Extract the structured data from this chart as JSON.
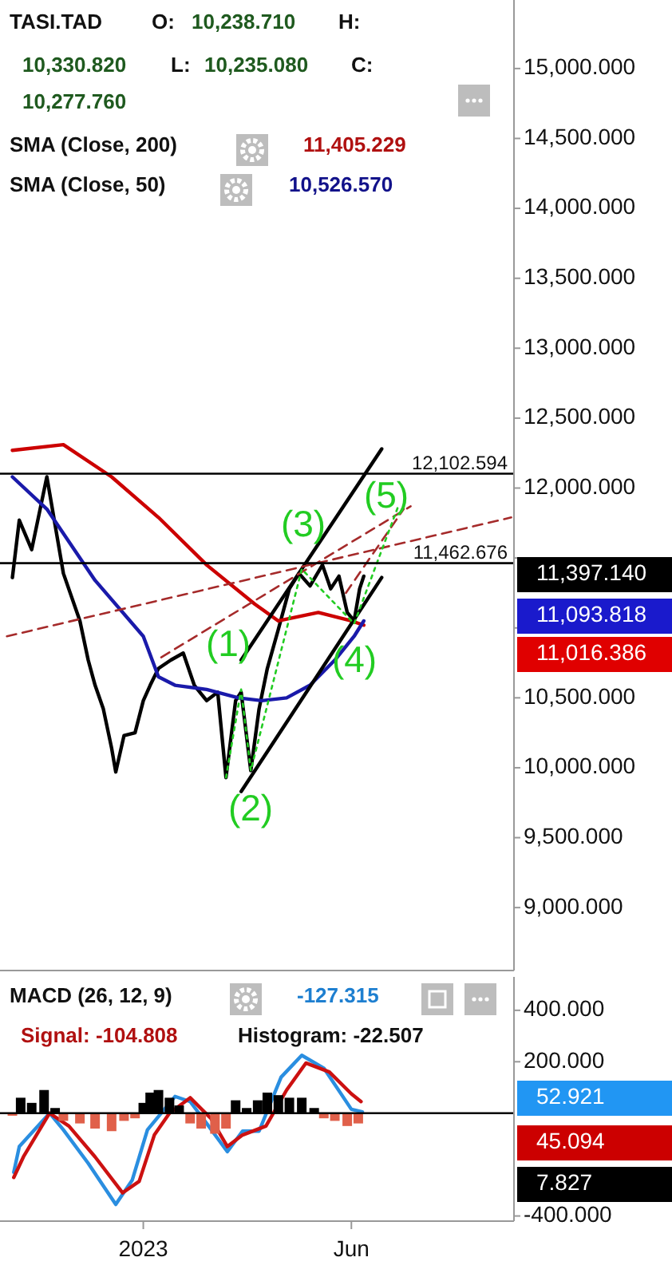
{
  "chart_data": [
    {
      "type": "line",
      "xlim": [
        "2022-09-19",
        "2023-09-27"
      ],
      "ylim": [
        8550,
        15490
      ],
      "yticks": [
        {
          "value": 9000,
          "label": "9,000.000"
        },
        {
          "value": 9500,
          "label": "9,500.000"
        },
        {
          "value": 10000,
          "label": "10,000.000"
        },
        {
          "value": 10500,
          "label": "10,500.000"
        },
        {
          "value": 11000,
          "label": null
        },
        {
          "value": 11500,
          "label": null
        },
        {
          "value": 12000,
          "label": "12,000.000"
        },
        {
          "value": 12500,
          "label": "12,500.000"
        },
        {
          "value": 13000,
          "label": "13,000.000"
        },
        {
          "value": 13500,
          "label": "13,500.000"
        },
        {
          "value": 14000,
          "label": "14,000.000"
        },
        {
          "value": 14500,
          "label": "14,500.000"
        },
        {
          "value": 15000,
          "label": "15,000.000"
        }
      ],
      "tick_labels": "y",
      "series": [
        {
          "color": "#000000",
          "x": [
            "2022-09-28",
            "2022-10-03",
            "2022-10-12",
            "2022-10-23",
            "2022-11-04",
            "2022-11-16",
            "2022-11-22",
            "2022-11-27",
            "2022-12-03",
            "2022-12-09",
            "2022-12-12",
            "2022-12-18",
            "2022-12-26",
            "2023-01-01",
            "2023-01-06",
            "2023-01-12",
            "2023-01-21",
            "2023-01-30",
            "2023-02-07",
            "2023-02-16",
            "2023-02-24",
            "2023-03-02",
            "2023-03-09",
            "2023-03-13",
            "2023-03-20",
            "2023-03-26",
            "2023-04-01",
            "2023-04-09",
            "2023-04-17",
            "2023-04-24",
            "2023-05-02",
            "2023-05-11",
            "2023-05-17",
            "2023-05-23",
            "2023-05-29",
            "2023-06-03",
            "2023-06-07",
            "2023-06-10"
          ],
          "values": [
            11360,
            11770,
            11560,
            12080,
            11390,
            11050,
            10770,
            10590,
            10420,
            10140,
            9970,
            10230,
            10250,
            10480,
            10590,
            10710,
            10770,
            10820,
            10590,
            10480,
            10540,
            9930,
            10480,
            10540,
            9980,
            10420,
            10710,
            10990,
            11280,
            11390,
            11300,
            11450,
            11280,
            11370,
            11110,
            11050,
            11280,
            11370
          ]
        },
        {
          "color": "#cc0000",
          "x": [
            "2022-09-28",
            "2022-11-04",
            "2022-12-09",
            "2023-01-12",
            "2023-02-16",
            "2023-03-23",
            "2023-04-09",
            "2023-05-08",
            "2023-06-01",
            "2023-06-10"
          ],
          "values": [
            12270,
            12310,
            12080,
            11790,
            11450,
            11170,
            11050,
            11110,
            11050,
            11020
          ]
        },
        {
          "color": "#1a1aaa",
          "x": [
            "2022-09-28",
            "2022-10-23",
            "2022-11-27",
            "2023-01-01",
            "2023-01-12",
            "2023-01-24",
            "2023-02-16",
            "2023-03-11",
            "2023-03-28",
            "2023-04-15",
            "2023-05-02",
            "2023-05-20",
            "2023-06-03",
            "2023-06-10"
          ],
          "values": [
            12080,
            11850,
            11340,
            10940,
            10650,
            10590,
            10560,
            10500,
            10480,
            10500,
            10590,
            10770,
            10940,
            11050
          ]
        },
        {
          "color": "#000000",
          "x": [
            "2023-03-13",
            "2023-06-23"
          ],
          "values": [
            10770,
            12280
          ]
        },
        {
          "color": "#000000",
          "x": [
            "2023-03-13",
            "2023-06-23"
          ],
          "values": [
            9830,
            11360
          ]
        },
        {
          "color": "#a52a2a",
          "line_style": "dashed",
          "x": [
            "2022-09-24",
            "2023-09-25"
          ],
          "values": [
            10940,
            11790
          ]
        },
        {
          "color": "#a52a2a",
          "line_style": "dashed",
          "x": [
            "2023-01-14",
            "2023-07-14"
          ],
          "values": [
            10790,
            11870
          ]
        },
        {
          "color": "#a52a2a",
          "line_style": "dashed",
          "x": [
            "2023-05-28",
            "2023-07-09"
          ],
          "values": [
            11250,
            11850
          ]
        },
        {
          "color": "#22cc22",
          "line_style": "dotted",
          "x": [
            "2023-03-02",
            "2023-03-13",
            "2023-03-20",
            "2023-04-26",
            "2023-06-03",
            "2023-07-05"
          ],
          "values": [
            9930,
            10560,
            9980,
            11420,
            11030,
            11870
          ]
        }
      ],
      "ref_lines": [
        {
          "axis": "y",
          "value": 12102.594,
          "label": "12,102.594"
        },
        {
          "axis": "y",
          "value": 11462.676,
          "label": "11,462.676"
        }
      ],
      "annotations": [
        "TASI.TAD",
        "O:",
        "10,238.710",
        "H:",
        "10,330.820",
        "L:",
        "10,235.080",
        "C:",
        "10,277.760",
        "SMA (Close, 200)",
        "11,405.229",
        "SMA (Close, 50)",
        "10,526.570",
        "(1)",
        "(2)",
        "(3)",
        "(4)",
        "(5)",
        "11,397.140",
        "11,093.818",
        "11,016.386"
      ]
    },
    {
      "type": "line",
      "xlim": [
        "2022-09-19",
        "2023-09-27"
      ],
      "xticks": [
        {
          "value": "2023-01-01",
          "label": "2023"
        },
        {
          "value": "2023-06-01",
          "label": "Jun"
        }
      ],
      "ylim": [
        -420,
        530
      ],
      "yticks": [
        {
          "value": 400,
          "label": "400.000"
        },
        {
          "value": 200,
          "label": "200.000"
        },
        {
          "value": -400,
          "label": "-400.000"
        }
      ],
      "series": [
        {
          "type": "bar",
          "x": [
            "2022-09-28",
            "2022-10-04",
            "2022-10-12",
            "2022-10-21",
            "2022-10-29",
            "2022-11-04",
            "2022-11-16",
            "2022-11-27",
            "2022-12-09",
            "2022-12-18",
            "2022-12-26",
            "2023-01-01",
            "2023-01-06",
            "2023-01-12",
            "2023-01-20",
            "2023-01-27",
            "2023-02-04",
            "2023-02-12",
            "2023-02-22",
            "2023-03-02",
            "2023-03-09",
            "2023-03-17",
            "2023-03-25",
            "2023-04-01",
            "2023-04-09",
            "2023-04-17",
            "2023-04-26",
            "2023-05-05",
            "2023-05-12",
            "2023-05-20",
            "2023-05-29",
            "2023-06-06"
          ],
          "values": [
            -10,
            60,
            40,
            90,
            20,
            -30,
            -40,
            -60,
            -70,
            -30,
            -20,
            40,
            80,
            90,
            60,
            30,
            -40,
            -60,
            -80,
            -60,
            50,
            20,
            50,
            80,
            70,
            60,
            60,
            20,
            -20,
            -30,
            -50,
            -40
          ],
          "colors": [
            "#e0604a",
            "#000000",
            "#000000",
            "#000000",
            "#000000",
            "#e0604a",
            "#e0604a",
            "#e0604a",
            "#e0604a",
            "#e0604a",
            "#e0604a",
            "#000000",
            "#000000",
            "#000000",
            "#000000",
            "#000000",
            "#e0604a",
            "#e0604a",
            "#e0604a",
            "#e0604a",
            "#000000",
            "#000000",
            "#000000",
            "#000000",
            "#000000",
            "#000000",
            "#000000",
            "#000000",
            "#e0604a",
            "#e0604a",
            "#e0604a",
            "#e0604a"
          ]
        },
        {
          "color": "#2a8ee0",
          "x": [
            "2022-09-29",
            "2022-10-03",
            "2022-10-25",
            "2022-11-04",
            "2022-11-22",
            "2022-12-12",
            "2022-12-24",
            "2023-01-04",
            "2023-01-24",
            "2023-02-04",
            "2023-02-16",
            "2023-03-03",
            "2023-03-14",
            "2023-03-26",
            "2023-04-11",
            "2023-04-26",
            "2023-05-12",
            "2023-06-01",
            "2023-06-09"
          ],
          "values": [
            -230,
            -130,
            0,
            -65,
            -195,
            -355,
            -260,
            -65,
            65,
            45,
            -40,
            -150,
            -70,
            -70,
            140,
            225,
            175,
            15,
            5
          ]
        },
        {
          "color": "#cc1111",
          "x": [
            "2022-09-29",
            "2022-10-06",
            "2022-10-25",
            "2022-11-08",
            "2022-11-27",
            "2022-12-17",
            "2022-12-29",
            "2023-01-09",
            "2023-01-20",
            "2023-02-04",
            "2023-02-19",
            "2023-03-03",
            "2023-03-14",
            "2023-03-31",
            "2023-04-15",
            "2023-04-29",
            "2023-05-16",
            "2023-06-01",
            "2023-06-08"
          ],
          "values": [
            -250,
            -170,
            0,
            -50,
            -170,
            -310,
            -265,
            -85,
            0,
            60,
            -20,
            -130,
            -85,
            -50,
            90,
            195,
            160,
            75,
            45
          ]
        }
      ],
      "ref_lines": [
        {
          "axis": "y",
          "value": 0,
          "label": null,
          "color": "#000000"
        }
      ],
      "annotations": [
        "MACD (26, 12, 9)",
        "-127.315",
        "Signal: -104.808",
        "Histogram: -22.507",
        "52.921",
        "45.094",
        "7.827"
      ]
    }
  ]
}
